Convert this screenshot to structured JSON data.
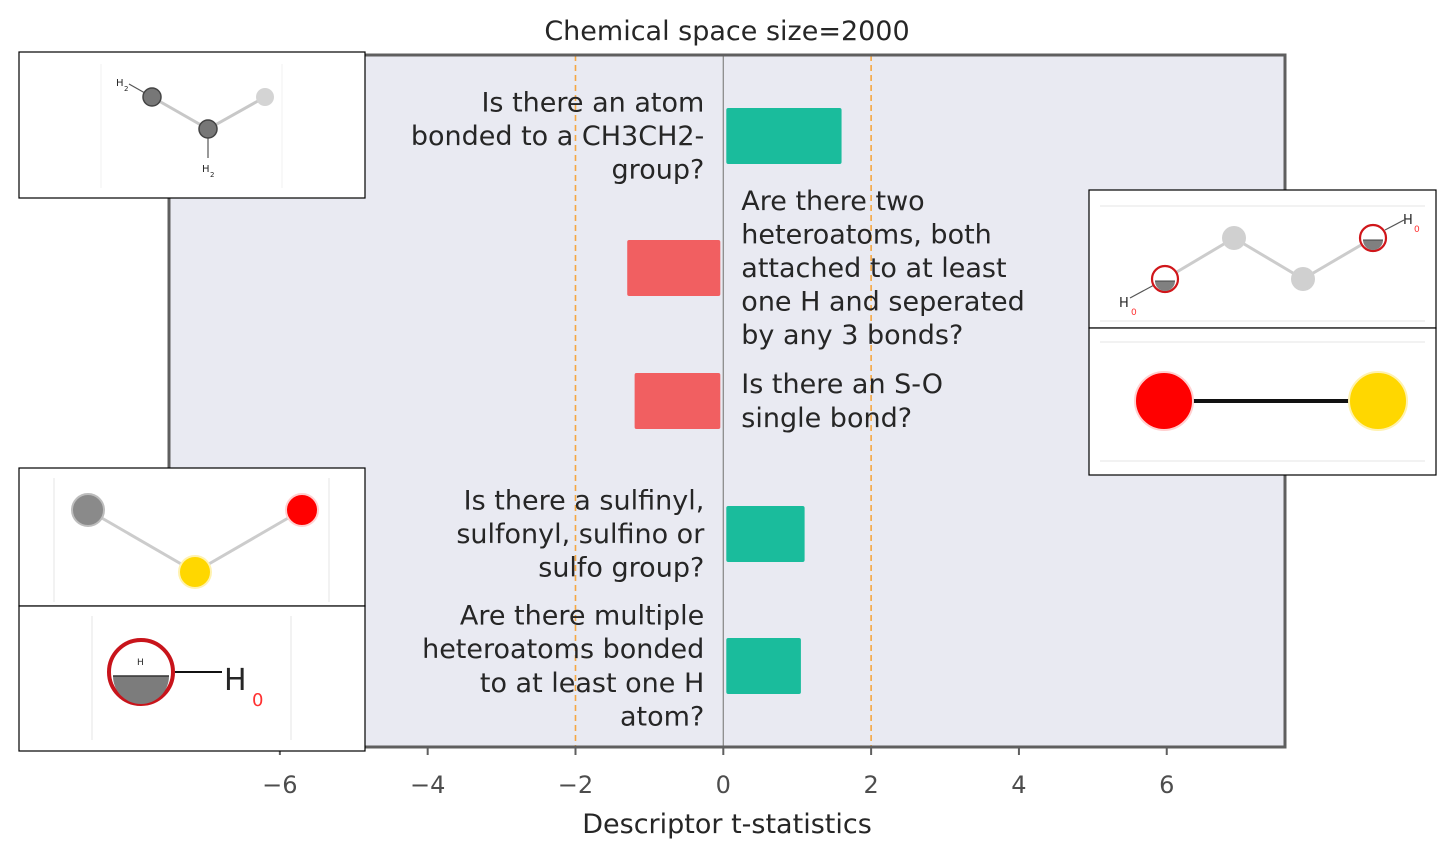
{
  "chart_data": {
    "type": "bar",
    "orientation": "horizontal",
    "title": "Chemical space size=2000",
    "xlabel": "Descriptor t-statistics",
    "ylabel": "",
    "xlim": [
      -7.5,
      7.6
    ],
    "xticks": [
      -6,
      -4,
      -2,
      0,
      2,
      4,
      6
    ],
    "xtick_labels": [
      "−6",
      "−4",
      "−2",
      "0",
      "2",
      "4",
      "6"
    ],
    "significance_lines": [
      -2,
      2
    ],
    "categories": [
      "Is there an atom bonded to a CH3CH2- group?",
      "Are there two heteroatoms, both attached to at least one H and seperated by any 3 bonds?",
      "Is there an S-O single bond?",
      "Is there a sulfinyl, sulfonyl, sulfino or sulfo group?",
      "Are there multiple heteroatoms bonded to at least one H atom?"
    ],
    "category_lines": [
      [
        "Is there an atom",
        "bonded to a CH3CH2-",
        "group?"
      ],
      [
        "Are there two",
        "heteroatoms, both",
        "attached to at least",
        "one H and seperated",
        "by any 3 bonds?"
      ],
      [
        "Is there an S-O",
        "single bond?"
      ],
      [
        "Is there a sulfinyl,",
        "sulfonyl, sulfino or",
        "sulfo group?"
      ],
      [
        "Are there multiple",
        "heteroatoms bonded",
        "to at least one H",
        "atom?"
      ]
    ],
    "values": [
      1.6,
      -1.3,
      -1.2,
      1.1,
      1.05
    ],
    "grid": false,
    "legend": "none"
  },
  "colors": {
    "positive": "#1abc9c",
    "negative": "#f15f61",
    "plot_background": "#e9eaf2",
    "threshold_line": "#f5a742",
    "frame": "#5f5f5f"
  },
  "molecule_insets": [
    {
      "name": "ethyl-fragment",
      "bar": 0,
      "side": "left",
      "atoms": [
        {
          "label": "H",
          "sub": "2"
        },
        {
          "label": "H",
          "sub": "2"
        }
      ]
    },
    {
      "name": "heteroatom-chain",
      "bar": 1,
      "side": "right",
      "atoms": [
        {
          "label": "H",
          "sub": "0"
        },
        {
          "label": "H",
          "sub": "0"
        }
      ]
    },
    {
      "name": "s-o-bond",
      "bar": 2,
      "side": "right",
      "atoms": []
    },
    {
      "name": "sulfinyl-fragment",
      "bar": 3,
      "side": "left",
      "atoms": []
    },
    {
      "name": "hydroxyl-fragment",
      "bar": 4,
      "side": "left",
      "atoms": [
        {
          "label": "H",
          "sub": "0"
        }
      ]
    }
  ]
}
